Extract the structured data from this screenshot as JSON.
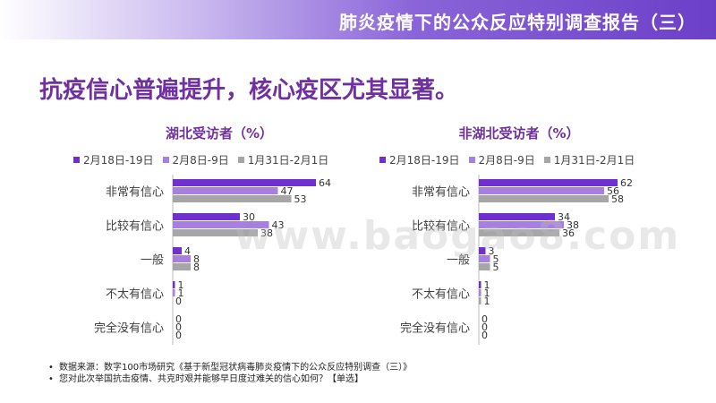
{
  "header": {
    "title": "肺炎疫情下的公众反应特别调查报告（三）"
  },
  "headline": "抗疫信心普遍提升，核心疫区尤其显著。",
  "legend": [
    {
      "label": "2月18日-19日",
      "color": "#7030d0"
    },
    {
      "label": "2月8日-9日",
      "color": "#a77fe0"
    },
    {
      "label": "1月31日-2月1日",
      "color": "#a6a6a6"
    }
  ],
  "chart_data": [
    {
      "type": "bar",
      "orientation": "horizontal",
      "title": "湖北受访者（%）",
      "categories": [
        "非常有信心",
        "比较有信心",
        "一般",
        "不太有信心",
        "完全没有信心"
      ],
      "series": [
        {
          "name": "2月18日-19日",
          "values": [
            64,
            30,
            4,
            1,
            0
          ]
        },
        {
          "name": "2月8日-9日",
          "values": [
            47,
            43,
            8,
            1,
            0
          ]
        },
        {
          "name": "1月31日-2月1日",
          "values": [
            53,
            38,
            8,
            0,
            0
          ]
        }
      ]
    },
    {
      "type": "bar",
      "orientation": "horizontal",
      "title": "非湖北受访者（%）",
      "categories": [
        "非常有信心",
        "比较有信心",
        "一般",
        "不太有信心",
        "完全没有信心"
      ],
      "series": [
        {
          "name": "2月18日-19日",
          "values": [
            62,
            34,
            3,
            1,
            0
          ]
        },
        {
          "name": "2月8日-9日",
          "values": [
            56,
            38,
            5,
            1,
            0
          ]
        },
        {
          "name": "1月31日-2月1日",
          "values": [
            58,
            36,
            5,
            1,
            0
          ]
        }
      ]
    }
  ],
  "notes": [
    "数据来源：数字100市场研究《基于新型冠状病毒肺炎疫情下的公众反应特别调查（三）》",
    "您对此次举国抗击疫情、共克时艰并能够早日度过难关的信心如何？【单选】"
  ],
  "watermark": "www.baogao8.com"
}
